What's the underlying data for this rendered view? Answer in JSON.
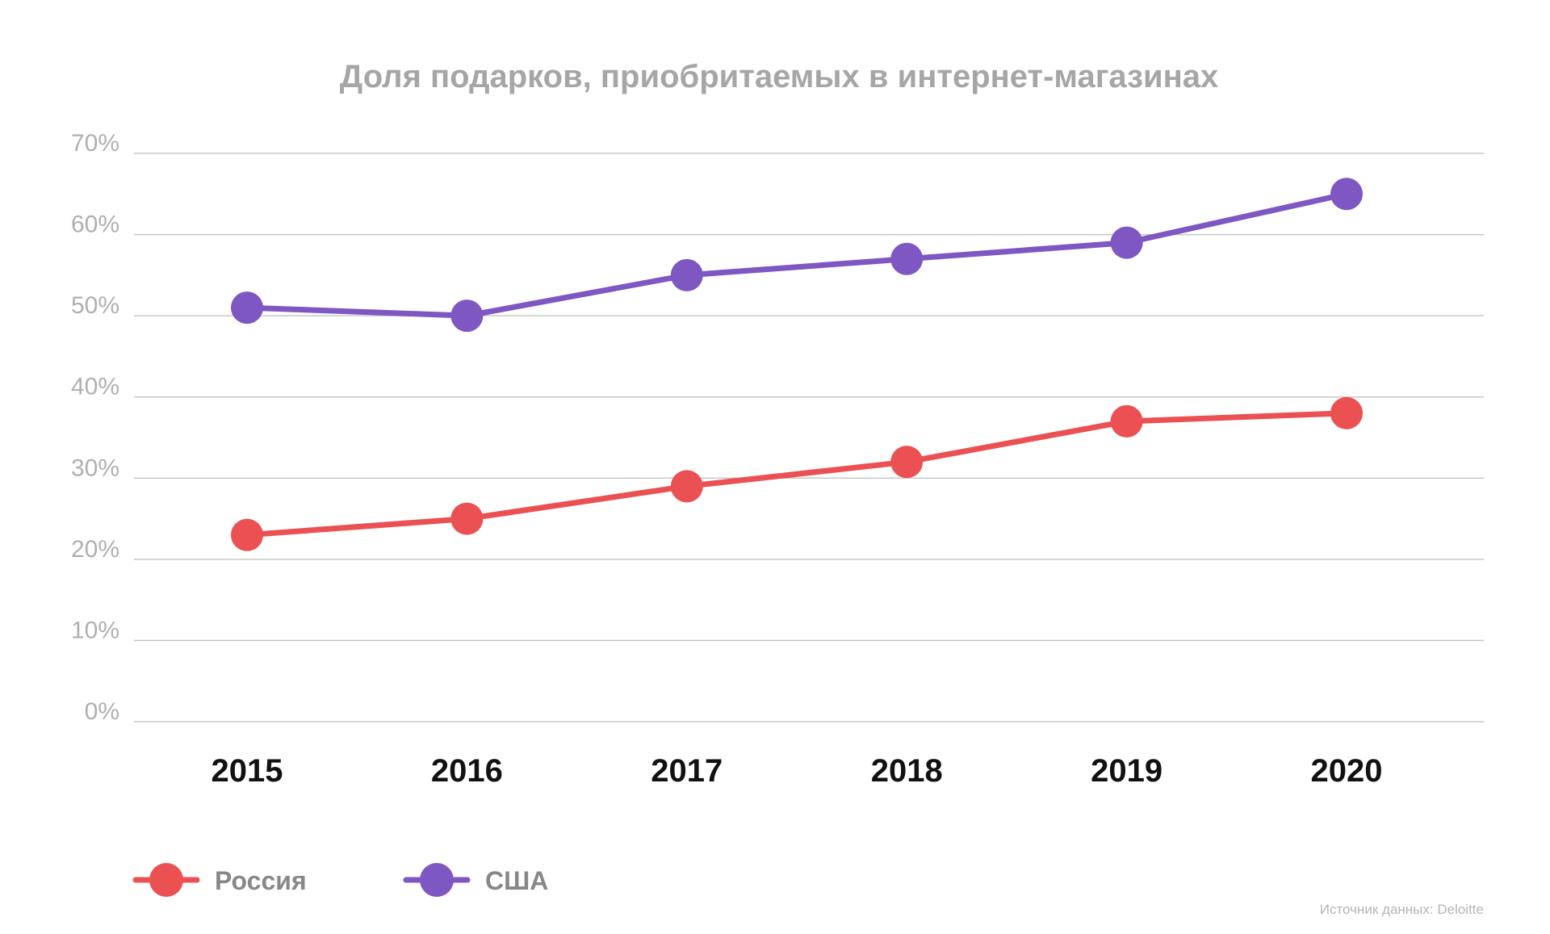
{
  "chart_data": {
    "type": "line",
    "title": "Доля подарков, приобритаемых в интернет-магазинах",
    "categories": [
      "2015",
      "2016",
      "2017",
      "2018",
      "2019",
      "2020"
    ],
    "series": [
      {
        "name": "Россия",
        "color": "#eb5052",
        "values": [
          23,
          25,
          29,
          32,
          37,
          38
        ]
      },
      {
        "name": "США",
        "color": "#7e57c2",
        "values": [
          51,
          50,
          55,
          57,
          59,
          65
        ]
      }
    ],
    "ylim": [
      0,
      70
    ],
    "yticks": [
      0,
      10,
      20,
      30,
      40,
      50,
      60,
      70
    ],
    "yticklabels": [
      "0%",
      "10%",
      "20%",
      "30%",
      "40%",
      "50%",
      "60%",
      "70%"
    ],
    "xlabel": "",
    "ylabel": "",
    "grid": true,
    "legend_position": "bottom-left",
    "source": "Источник данных: Deloitte"
  }
}
